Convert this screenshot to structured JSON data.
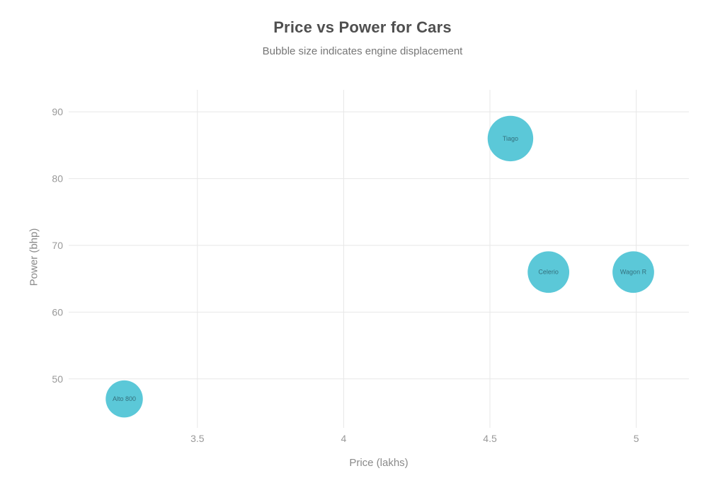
{
  "chart_data": {
    "type": "scatter",
    "subtype": "bubble",
    "title": "Price vs Power for Cars",
    "subtitle": "Bubble size indicates engine displacement",
    "xlabel": "Price (lakhs)",
    "ylabel": "Power (bhp)",
    "x_ticks": [
      3.5,
      4,
      4.5,
      5
    ],
    "y_ticks": [
      50,
      60,
      70,
      80,
      90
    ],
    "xlim": [
      3.06,
      5.18
    ],
    "ylim": [
      43.2,
      93.3
    ],
    "grid": true,
    "legend": "none",
    "points": [
      {
        "label": "Alto 800",
        "price": 3.25,
        "power": 47,
        "displacement_cc": 796
      },
      {
        "label": "Tiago",
        "price": 4.57,
        "power": 86,
        "displacement_cc": 1199
      },
      {
        "label": "Celerio",
        "price": 4.7,
        "power": 66,
        "displacement_cc": 998
      },
      {
        "label": "Wagon R",
        "price": 4.99,
        "power": 66,
        "displacement_cc": 998
      }
    ],
    "colors": {
      "bubble_fill": "#5bc8d8",
      "bubble_label": "#34707d",
      "gridline": "#e7e7e7",
      "tick_label": "#999999",
      "axis_title": "#8a8a8a",
      "title": "#4f4f4f",
      "subtitle": "#767676",
      "background": "#ffffff"
    }
  }
}
